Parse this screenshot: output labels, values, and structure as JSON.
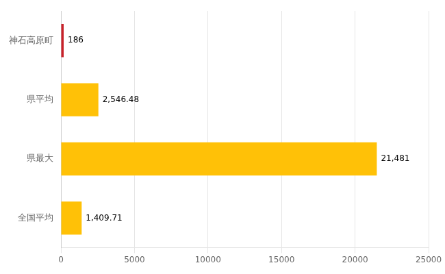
{
  "chart_data": {
    "type": "bar",
    "orientation": "horizontal",
    "categories": [
      "全国平均",
      "県最大",
      "県平均",
      "神石高原町"
    ],
    "values": [
      1409.71,
      21481,
      2546.48,
      186
    ],
    "value_labels": [
      "1,409.71",
      "21,481",
      "2,546.48",
      "186"
    ],
    "colors": [
      "#FFC107",
      "#FFC107",
      "#FFC107",
      "#C8222A"
    ],
    "xlim": [
      0,
      25000
    ],
    "xticks": [
      0,
      5000,
      10000,
      15000,
      20000,
      25000
    ],
    "grid": true,
    "data_labels": true
  }
}
